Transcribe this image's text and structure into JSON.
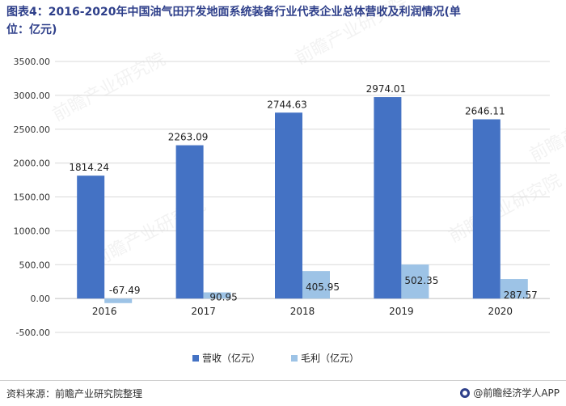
{
  "header": {
    "title_line1": "图表4：2016-2020年中国油气田开发地面系统装备行业代表企业总体营收及利润情况(单",
    "title_line2": "位：亿元)"
  },
  "footer": {
    "source": "资料来源：前瞻产业研究院整理",
    "brand": "@前瞻经济学人APP"
  },
  "watermark": "前瞻产业研究院",
  "colors": {
    "revenue": "#4472c4",
    "profit": "#9dc3e6",
    "grid": "#d9d9d9",
    "title": "#2e3f8a"
  },
  "chart_data": {
    "type": "bar",
    "categories": [
      "2016",
      "2017",
      "2018",
      "2019",
      "2020"
    ],
    "series": [
      {
        "name": "营收（亿元）",
        "values": [
          1814.24,
          2263.09,
          2744.63,
          2974.01,
          2646.11
        ]
      },
      {
        "name": "毛利（亿元）",
        "values": [
          -67.49,
          90.95,
          405.95,
          502.35,
          287.57
        ]
      }
    ],
    "value_labels": [
      [
        "1814.24",
        "2263.09",
        "2744.63",
        "2974.01",
        "2646.11"
      ],
      [
        "-67.49",
        "90.95",
        "405.95",
        "502.35",
        "287.57"
      ]
    ],
    "y_ticks": [
      "3500.00",
      "3000.00",
      "2500.00",
      "2000.00",
      "1500.00",
      "1000.00",
      "500.00",
      "0.00",
      "-500.00"
    ],
    "ylim": [
      -500,
      3500
    ],
    "grid": true,
    "legend_position": "bottom",
    "title": "",
    "xlabel": "",
    "ylabel": ""
  }
}
